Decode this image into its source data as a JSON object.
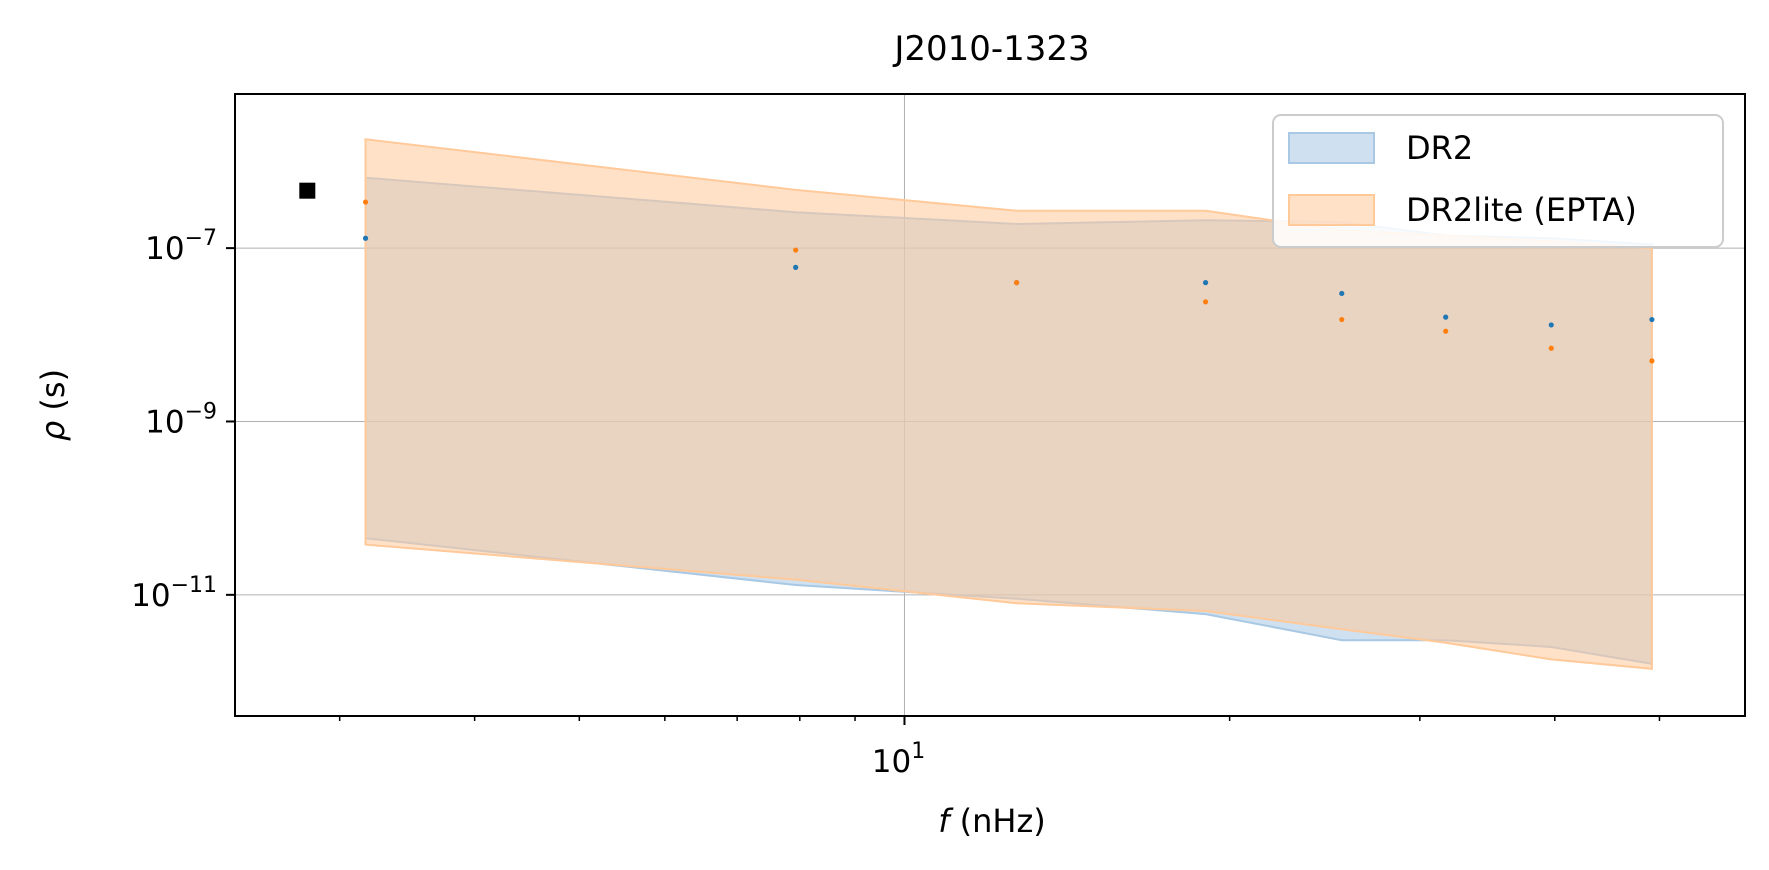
{
  "chart_data": {
    "type": "area",
    "title": "J2010-1323",
    "xlabel": {
      "symbol": "f",
      "unit": " (nHz)"
    },
    "ylabel": {
      "symbol": "ρ",
      "unit": " (s)"
    },
    "xscale": "log",
    "yscale": "log",
    "xlim": [
      2.4,
      60
    ],
    "ylim": [
      4e-13,
      6e-06
    ],
    "grid": true,
    "legend_position": "top-right",
    "x_major_ticks": [
      {
        "value": 10,
        "base": "10",
        "exp": "1"
      }
    ],
    "x_minor_ticks": [
      3,
      4,
      5,
      6,
      7,
      8,
      9,
      20,
      30,
      40,
      50
    ],
    "y_ticks": [
      {
        "value": 1e-07,
        "base": "10",
        "exp": "−7"
      },
      {
        "value": 1e-09,
        "base": "10",
        "exp": "−9"
      },
      {
        "value": 1e-11,
        "base": "10",
        "exp": "−11"
      }
    ],
    "series": [
      {
        "name": "DR2",
        "color": "#1f77b4",
        "fill": "#a8c8e4",
        "x": [
          3.17,
          7.93,
          12.7,
          19.0,
          25.4,
          31.7,
          39.7,
          49.2
        ],
        "points": [
          1.3e-07,
          6e-08,
          4e-08,
          4e-08,
          3e-08,
          1.6e-08,
          1.3e-08,
          1.5e-08
        ],
        "upper": [
          6.5e-07,
          2.6e-07,
          1.9e-07,
          2.1e-07,
          2e-07,
          1.4e-07,
          1.3e-07,
          1.1e-07
        ],
        "lower": [
          4.5e-11,
          1.3e-11,
          9e-12,
          6e-12,
          3e-12,
          3e-12,
          2.5e-12,
          1.6e-12
        ]
      },
      {
        "name": "DR2lite (EPTA)",
        "color": "#ff7f0e",
        "fill": "#ffc99a",
        "x": [
          3.17,
          7.93,
          12.7,
          19.0,
          25.4,
          31.7,
          39.7,
          49.2
        ],
        "points": [
          3.4e-07,
          9.5e-08,
          4e-08,
          2.4e-08,
          1.5e-08,
          1.1e-08,
          7e-09,
          5e-09
        ],
        "upper": [
          1.8e-06,
          4.7e-07,
          2.7e-07,
          2.7e-07,
          1.6e-07,
          1.4e-07,
          1.2e-07,
          1e-07
        ],
        "lower": [
          3.8e-11,
          1.5e-11,
          8e-12,
          6.5e-12,
          4e-12,
          2.8e-12,
          1.8e-12,
          1.4e-12
        ]
      }
    ],
    "extra_markers": [
      {
        "x": 2.8,
        "y": 4.6e-07,
        "shape": "square",
        "color": "#000000"
      }
    ]
  }
}
